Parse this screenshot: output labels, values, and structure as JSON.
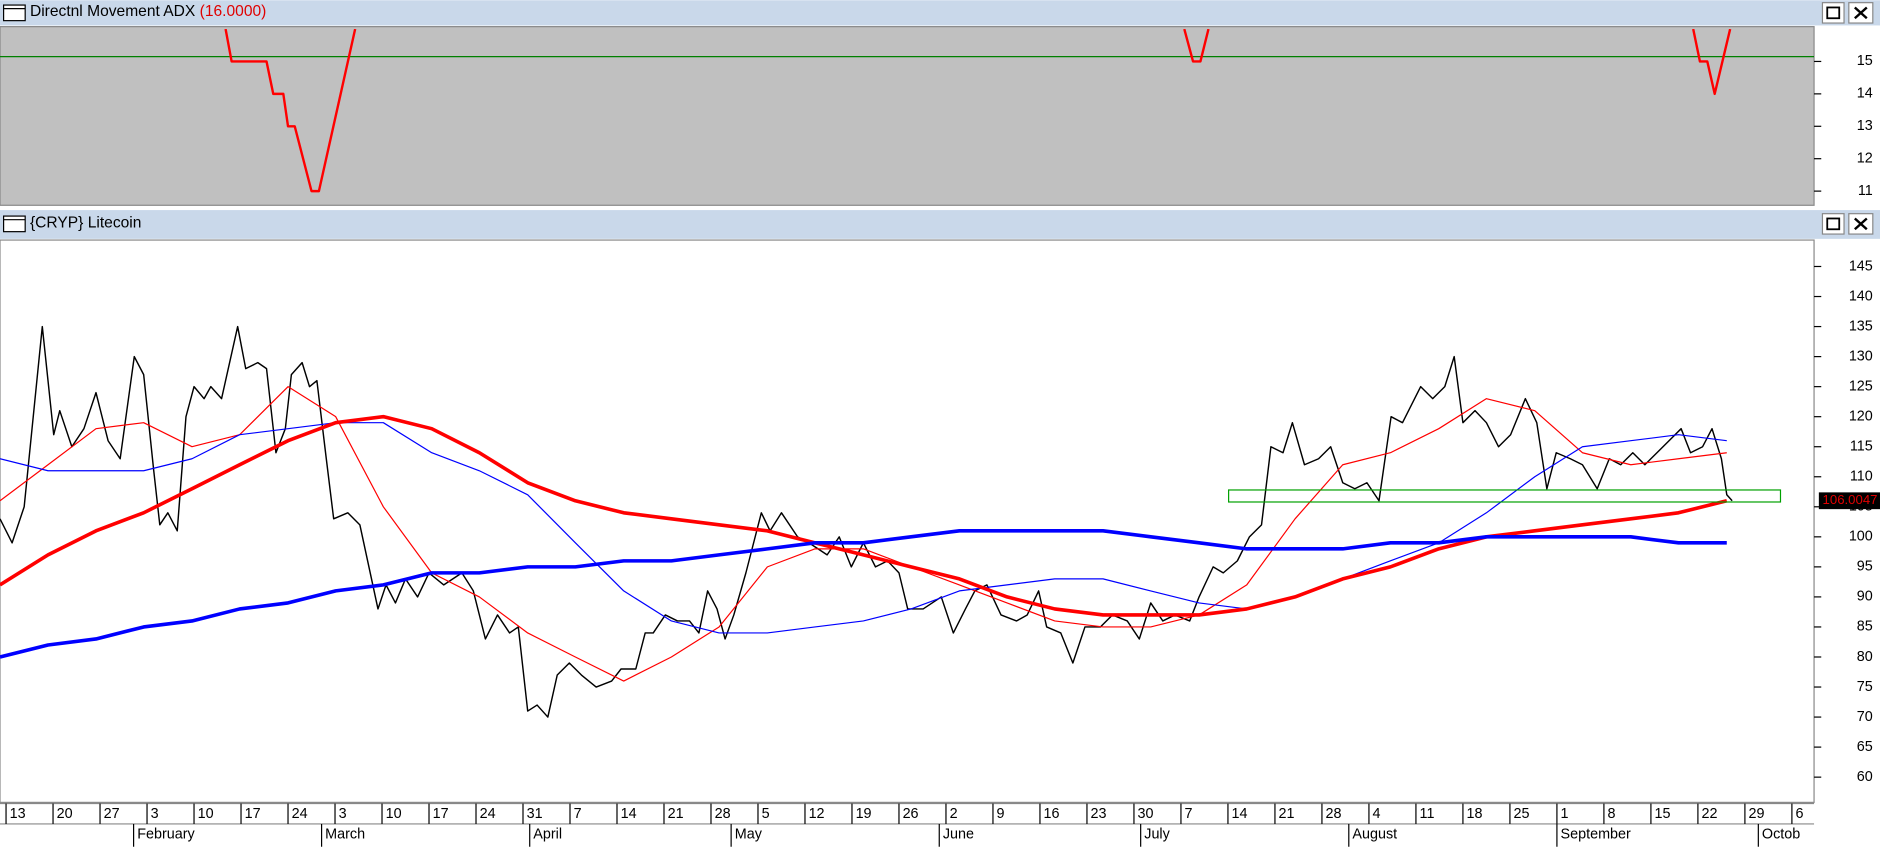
{
  "chart_data": [
    {
      "type": "line",
      "title": "Directnl Movement ADX",
      "current": {
        "value": 16,
        "label": "(16.0000)"
      },
      "xlim": [
        -0.9,
        269.3
      ],
      "ylim": [
        10.6,
        16
      ],
      "yticks": [
        11,
        12,
        13,
        14,
        15
      ],
      "reference_line": 15.15,
      "reference_color": "#008000",
      "series": [
        {
          "color": "#ff0000",
          "line_width": 2,
          "x": [
            32.7,
            33.6,
            38.8,
            39.8,
            41.3,
            42.0,
            43.0,
            45.5,
            46.6,
            52.0,
            110,
            175.5,
            176.8,
            177.9,
            179.1,
            220,
            251.3,
            252.3,
            253.4,
            254.5,
            256.8
          ],
          "values": [
            16,
            15,
            15,
            14,
            14,
            13,
            13,
            11,
            11,
            16,
            null,
            16,
            15,
            15,
            16,
            null,
            16,
            15,
            15,
            14,
            16
          ]
        }
      ]
    },
    {
      "type": "line",
      "title": "{CRYP} Litecoin",
      "xlim": [
        -0.9,
        269.3
      ],
      "ylim": [
        56,
        149.2
      ],
      "yticks": [
        60,
        65,
        70,
        75,
        80,
        85,
        90,
        95,
        100,
        105,
        110,
        115,
        120,
        125,
        130,
        135,
        140,
        145
      ],
      "xticks": [
        {
          "value": 0,
          "label": "13"
        },
        {
          "value": 7,
          "label": "20"
        },
        {
          "value": 14,
          "label": "27"
        },
        {
          "value": 21,
          "label": "3"
        },
        {
          "value": 28,
          "label": "10"
        },
        {
          "value": 35,
          "label": "17"
        },
        {
          "value": 42,
          "label": "24"
        },
        {
          "value": 49,
          "label": "3"
        },
        {
          "value": 56,
          "label": "10"
        },
        {
          "value": 63,
          "label": "17"
        },
        {
          "value": 70,
          "label": "24"
        },
        {
          "value": 77,
          "label": "31"
        },
        {
          "value": 84,
          "label": "7"
        },
        {
          "value": 91,
          "label": "14"
        },
        {
          "value": 98,
          "label": "21"
        },
        {
          "value": 105,
          "label": "28"
        },
        {
          "value": 112,
          "label": "5"
        },
        {
          "value": 119,
          "label": "12"
        },
        {
          "value": 126,
          "label": "19"
        },
        {
          "value": 133,
          "label": "26"
        },
        {
          "value": 140,
          "label": "2"
        },
        {
          "value": 147,
          "label": "9"
        },
        {
          "value": 154,
          "label": "16"
        },
        {
          "value": 161,
          "label": "23"
        },
        {
          "value": 168,
          "label": "30"
        },
        {
          "value": 175,
          "label": "7"
        },
        {
          "value": 182,
          "label": "14"
        },
        {
          "value": 189,
          "label": "21"
        },
        {
          "value": 196,
          "label": "28"
        },
        {
          "value": 203,
          "label": "4"
        },
        {
          "value": 210,
          "label": "11"
        },
        {
          "value": 217,
          "label": "18"
        },
        {
          "value": 224,
          "label": "25"
        },
        {
          "value": 231,
          "label": "1"
        },
        {
          "value": 238,
          "label": "8"
        },
        {
          "value": 245,
          "label": "15"
        },
        {
          "value": 252,
          "label": "22"
        },
        {
          "value": 259,
          "label": "29"
        },
        {
          "value": 266,
          "label": "6"
        }
      ],
      "month_ticks": [
        {
          "value": 19,
          "label": "February"
        },
        {
          "value": 47,
          "label": "March"
        },
        {
          "value": 78,
          "label": "April"
        },
        {
          "value": 108,
          "label": "May"
        },
        {
          "value": 139,
          "label": "June"
        },
        {
          "value": 169,
          "label": "July"
        },
        {
          "value": 200,
          "label": "August"
        },
        {
          "value": 231,
          "label": "September"
        },
        {
          "value": 261,
          "label": "Octob"
        }
      ],
      "last_value": 106.0047,
      "zone": {
        "x": [
          182.1,
          264.3
        ],
        "y": [
          105.8,
          107.8
        ],
        "color": "#00a000"
      },
      "series": [
        {
          "color": "#000000",
          "line_width": 1.2,
          "x": [
            -0.9,
            0.9,
            2.7,
            5.4,
            7.1,
            8.0,
            9.8,
            11.6,
            13.4,
            15.2,
            17.0,
            19.1,
            20.5,
            22.0,
            22.9,
            24.1,
            25.5,
            26.8,
            28.0,
            29.5,
            30.5,
            32.1,
            34.5,
            35.7,
            37.5,
            38.8,
            40.2,
            41.6,
            42.5,
            44.1,
            45.2,
            46.3,
            47.7,
            48.8,
            50.9,
            52.7,
            55.4,
            56.6,
            58.0,
            59.5,
            61.3,
            63.0,
            65.2,
            67.9,
            69.6,
            71.4,
            73.2,
            75.0,
            76.3,
            77.7,
            79.1,
            80.7,
            82.1,
            83.9,
            85.7,
            87.9,
            90.2,
            91.6,
            93.8,
            95.2,
            96.4,
            98.2,
            100.0,
            101.8,
            103.2,
            104.5,
            105.9,
            107.1,
            108.4,
            110.2,
            112.5,
            113.8,
            115.5,
            117.9,
            119.6,
            122.3,
            124.1,
            125.9,
            127.7,
            129.5,
            131.3,
            133.0,
            134.3,
            136.6,
            139.3,
            141.1,
            142.9,
            144.3,
            146.1,
            148.2,
            150.5,
            152.1,
            153.8,
            155.0,
            157.1,
            158.9,
            160.7,
            163.0,
            164.8,
            167.0,
            168.8,
            170.5,
            172.3,
            174.1,
            176.3,
            177.7,
            179.8,
            181.3,
            183.4,
            185.2,
            187.0,
            188.4,
            190.2,
            191.6,
            193.4,
            195.5,
            197.3,
            199.1,
            200.9,
            202.7,
            204.5,
            206.3,
            208.0,
            210.7,
            212.5,
            214.3,
            215.7,
            217.0,
            218.8,
            220.5,
            222.3,
            224.1,
            226.3,
            228.0,
            229.5,
            230.9,
            233.0,
            234.8,
            237.0,
            238.8,
            240.5,
            242.3,
            244.1,
            245.9,
            247.7,
            249.5,
            250.9,
            252.7,
            254.1,
            255.5,
            256.3,
            257.1
          ],
          "values": [
            103,
            99,
            105,
            135,
            117,
            121,
            115,
            118,
            124,
            116,
            113,
            130,
            127,
            111,
            102,
            104,
            101,
            120,
            125,
            123,
            125,
            123,
            135,
            128,
            129,
            128,
            114,
            118,
            127,
            129,
            125,
            126,
            113,
            103,
            104,
            102,
            88,
            92,
            89,
            93,
            90,
            94,
            92,
            94,
            91,
            83,
            87,
            84,
            85,
            71,
            72,
            70,
            77,
            79,
            77,
            75,
            76,
            78,
            78,
            84,
            84,
            87,
            86,
            86,
            84,
            91,
            88,
            83,
            87,
            94,
            104,
            101,
            104,
            100,
            99,
            97,
            100,
            95,
            99,
            95,
            96,
            94,
            88,
            88,
            90,
            84,
            88,
            91,
            92,
            87,
            86,
            87,
            91,
            85,
            84,
            79,
            85,
            85,
            87,
            86,
            83,
            89,
            86,
            87,
            86,
            90,
            95,
            94,
            96,
            100,
            102,
            115,
            114,
            119,
            112,
            113,
            115,
            109,
            108,
            109,
            106,
            120,
            119,
            125,
            123,
            125,
            130,
            119,
            121,
            119,
            115,
            117,
            123,
            119,
            108,
            114,
            113,
            112,
            108,
            113,
            112,
            114,
            112,
            114,
            116,
            118,
            114,
            115,
            118,
            113,
            107,
            106
          ]
        },
        {
          "color": "#ff0000",
          "line_width": 1,
          "x": [
            -0.9,
            6.25,
            13.4,
            20.5,
            27.7,
            34.8,
            42.0,
            49.1,
            56.2,
            63.4,
            70.5,
            77.7,
            84.8,
            92.0,
            99.1,
            106.2,
            113.4,
            120.5,
            127.7,
            134.8,
            142.0,
            149.1,
            156.2,
            163.4,
            170.5,
            177.7,
            184.8,
            192.0,
            199.1,
            206.2,
            213.4,
            220.5,
            227.7,
            234.8,
            242.0,
            249.1,
            256.3
          ],
          "values": [
            106,
            112,
            118,
            119,
            115,
            117,
            125,
            120,
            105,
            94,
            90,
            84,
            80,
            76,
            80,
            85,
            95,
            98,
            98,
            95,
            92,
            89,
            86,
            85,
            85,
            87,
            92,
            103,
            112,
            114,
            118,
            123,
            121,
            114,
            112,
            113,
            114
          ]
        },
        {
          "color": "#0000ff",
          "line_width": 1,
          "x": [
            -0.9,
            6.25,
            13.4,
            20.5,
            27.7,
            34.8,
            42.0,
            49.1,
            56.2,
            63.4,
            70.5,
            77.7,
            84.8,
            92.0,
            99.1,
            106.2,
            113.4,
            120.5,
            127.7,
            134.8,
            142.0,
            149.1,
            156.2,
            163.4,
            170.5,
            177.7,
            184.8,
            192.0,
            199.1,
            206.2,
            213.4,
            220.5,
            227.7,
            234.8,
            242.0,
            249.1,
            256.3
          ],
          "values": [
            113,
            111,
            111,
            111,
            113,
            117,
            118,
            119,
            119,
            114,
            111,
            107,
            99,
            91,
            86,
            84,
            84,
            85,
            86,
            88,
            91,
            92,
            93,
            93,
            91,
            89,
            88,
            90,
            93,
            96,
            99,
            104,
            110,
            115,
            116,
            117,
            116
          ]
        },
        {
          "color": "#ff0000",
          "line_width": 3,
          "x": [
            -0.9,
            6.25,
            13.4,
            20.5,
            27.7,
            34.8,
            42.0,
            49.1,
            56.2,
            63.4,
            70.5,
            77.7,
            84.8,
            92.0,
            99.1,
            106.2,
            113.4,
            120.5,
            127.7,
            134.8,
            142.0,
            149.1,
            156.2,
            163.4,
            170.5,
            177.7,
            184.8,
            192.0,
            199.1,
            206.2,
            213.4,
            220.5,
            227.7,
            234.8,
            242.0,
            249.1,
            256.3
          ],
          "values": [
            92,
            97,
            101,
            104,
            108,
            112,
            116,
            119,
            120,
            118,
            114,
            109,
            106,
            104,
            103,
            102,
            101,
            99,
            97,
            95,
            93,
            90,
            88,
            87,
            87,
            87,
            88,
            90,
            93,
            95,
            98,
            100,
            101,
            102,
            103,
            104,
            106
          ]
        },
        {
          "color": "#0000ff",
          "line_width": 3,
          "x": [
            -0.9,
            6.25,
            13.4,
            20.5,
            27.7,
            34.8,
            42.0,
            49.1,
            56.2,
            63.4,
            70.5,
            77.7,
            84.8,
            92.0,
            99.1,
            106.2,
            113.4,
            120.5,
            127.7,
            134.8,
            142.0,
            149.1,
            156.2,
            163.4,
            170.5,
            177.7,
            184.8,
            192.0,
            199.1,
            206.2,
            213.4,
            220.5,
            227.7,
            234.8,
            242.0,
            249.1,
            256.3
          ],
          "values": [
            80,
            82,
            83,
            85,
            86,
            88,
            89,
            91,
            92,
            94,
            94,
            95,
            95,
            96,
            96,
            97,
            98,
            99,
            99,
            100,
            101,
            101,
            101,
            101,
            100,
            99,
            98,
            98,
            98,
            99,
            99,
            100,
            100,
            100,
            100,
            99,
            99
          ]
        }
      ]
    }
  ]
}
